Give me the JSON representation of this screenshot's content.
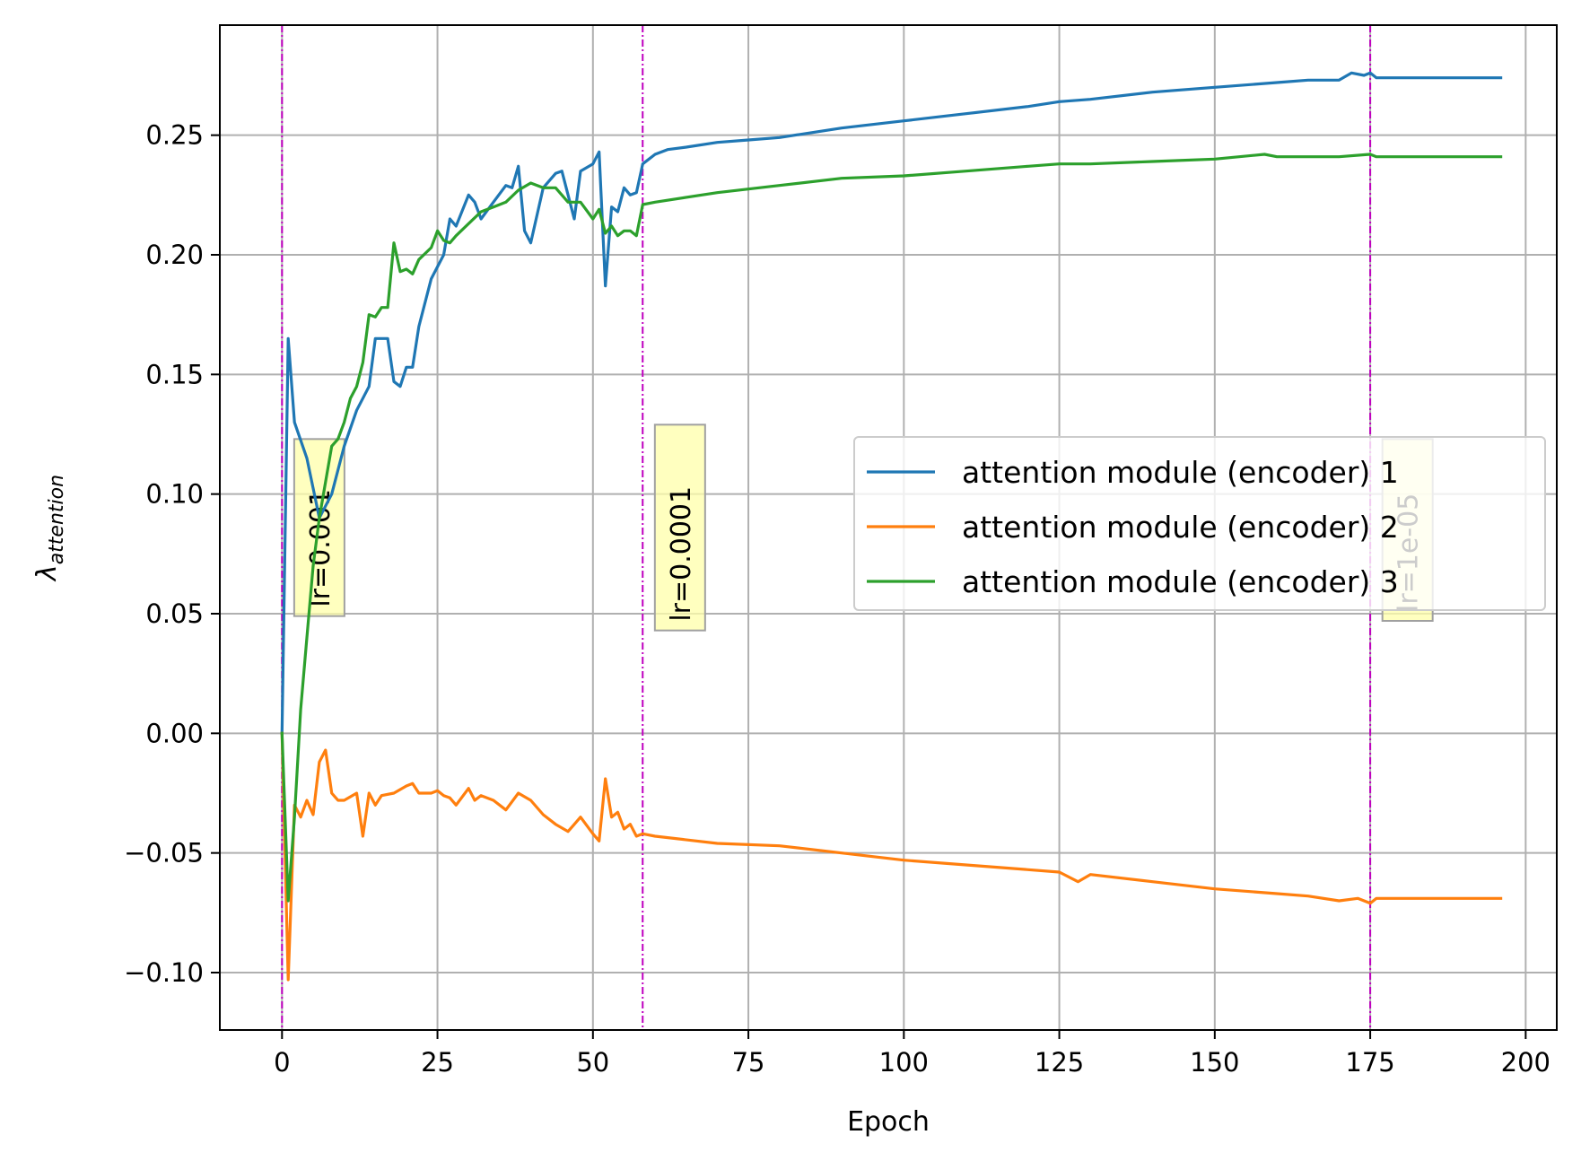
{
  "chart_data": {
    "type": "line",
    "title": "",
    "xlabel": "Epoch",
    "ylabel_main": "λ",
    "ylabel_sub": "attention",
    "xlim": [
      -10,
      205
    ],
    "ylim": [
      -0.124,
      0.296
    ],
    "x_ticks": [
      0,
      25,
      50,
      75,
      100,
      125,
      150,
      175,
      200
    ],
    "x_tick_labels": [
      "0",
      "25",
      "50",
      "75",
      "100",
      "125",
      "150",
      "175",
      "200"
    ],
    "y_ticks": [
      -0.1,
      -0.05,
      0.0,
      0.05,
      0.1,
      0.15,
      0.2,
      0.25
    ],
    "y_tick_labels": [
      "−0.10",
      "−0.05",
      "0.00",
      "0.05",
      "0.10",
      "0.15",
      "0.20",
      "0.25"
    ],
    "grid": true,
    "legend_position": "center-right",
    "series": [
      {
        "name": "attention module (encoder) 1",
        "color": "#1f77b4",
        "x": [
          0,
          1,
          2,
          4,
          6,
          8,
          10,
          12,
          14,
          15,
          17,
          18,
          19,
          20,
          21,
          22,
          24,
          26,
          27,
          28,
          30,
          31,
          32,
          34,
          36,
          37,
          38,
          39,
          40,
          42,
          44,
          45,
          46,
          47,
          48,
          50,
          51,
          52,
          53,
          54,
          55,
          56,
          57,
          58,
          60,
          62,
          65,
          70,
          75,
          80,
          90,
          100,
          110,
          120,
          125,
          130,
          140,
          150,
          160,
          165,
          170,
          172,
          174,
          175,
          176,
          180,
          190,
          196
        ],
        "y": [
          0.0,
          0.165,
          0.13,
          0.115,
          0.09,
          0.1,
          0.12,
          0.135,
          0.145,
          0.165,
          0.165,
          0.147,
          0.145,
          0.153,
          0.153,
          0.17,
          0.19,
          0.2,
          0.215,
          0.212,
          0.225,
          0.222,
          0.215,
          0.222,
          0.229,
          0.228,
          0.237,
          0.21,
          0.205,
          0.228,
          0.234,
          0.235,
          0.225,
          0.215,
          0.235,
          0.238,
          0.243,
          0.187,
          0.22,
          0.218,
          0.228,
          0.225,
          0.226,
          0.238,
          0.242,
          0.244,
          0.245,
          0.247,
          0.248,
          0.249,
          0.253,
          0.256,
          0.259,
          0.262,
          0.264,
          0.265,
          0.268,
          0.27,
          0.272,
          0.273,
          0.273,
          0.276,
          0.275,
          0.276,
          0.274,
          0.274,
          0.274,
          0.274
        ]
      },
      {
        "name": "attention module (encoder) 2",
        "color": "#ff7f0e",
        "x": [
          0,
          1,
          2,
          3,
          4,
          5,
          6,
          7,
          8,
          9,
          10,
          12,
          13,
          14,
          15,
          16,
          18,
          20,
          21,
          22,
          24,
          25,
          26,
          27,
          28,
          30,
          31,
          32,
          34,
          36,
          38,
          40,
          42,
          44,
          46,
          48,
          50,
          51,
          52,
          53,
          54,
          55,
          56,
          57,
          58,
          60,
          70,
          80,
          90,
          100,
          110,
          120,
          125,
          128,
          130,
          140,
          150,
          160,
          165,
          170,
          173,
          175,
          176,
          180,
          190,
          196
        ],
        "y": [
          0.0,
          -0.103,
          -0.03,
          -0.035,
          -0.028,
          -0.034,
          -0.012,
          -0.007,
          -0.025,
          -0.028,
          -0.028,
          -0.025,
          -0.043,
          -0.025,
          -0.03,
          -0.026,
          -0.025,
          -0.022,
          -0.021,
          -0.025,
          -0.025,
          -0.024,
          -0.026,
          -0.027,
          -0.03,
          -0.023,
          -0.028,
          -0.026,
          -0.028,
          -0.032,
          -0.025,
          -0.028,
          -0.034,
          -0.038,
          -0.041,
          -0.035,
          -0.042,
          -0.045,
          -0.019,
          -0.035,
          -0.033,
          -0.04,
          -0.038,
          -0.043,
          -0.042,
          -0.043,
          -0.046,
          -0.047,
          -0.05,
          -0.053,
          -0.055,
          -0.057,
          -0.058,
          -0.062,
          -0.059,
          -0.062,
          -0.065,
          -0.067,
          -0.068,
          -0.07,
          -0.069,
          -0.071,
          -0.069,
          -0.069,
          -0.069,
          -0.069
        ]
      },
      {
        "name": "attention module (encoder) 3",
        "color": "#2ca02c",
        "x": [
          0,
          1,
          2,
          3,
          4,
          5,
          6,
          7,
          8,
          9,
          10,
          11,
          12,
          13,
          14,
          15,
          16,
          17,
          18,
          19,
          20,
          21,
          22,
          24,
          25,
          26,
          27,
          28,
          30,
          32,
          34,
          36,
          38,
          40,
          42,
          44,
          46,
          48,
          50,
          51,
          52,
          53,
          54,
          55,
          56,
          57,
          58,
          60,
          70,
          80,
          90,
          100,
          110,
          120,
          125,
          130,
          140,
          150,
          158,
          160,
          170,
          175,
          176,
          180,
          190,
          196
        ],
        "y": [
          0.0,
          -0.07,
          -0.035,
          0.01,
          0.04,
          0.07,
          0.09,
          0.105,
          0.12,
          0.123,
          0.13,
          0.14,
          0.145,
          0.155,
          0.175,
          0.174,
          0.178,
          0.178,
          0.205,
          0.193,
          0.194,
          0.192,
          0.198,
          0.203,
          0.21,
          0.206,
          0.205,
          0.208,
          0.213,
          0.218,
          0.22,
          0.222,
          0.227,
          0.23,
          0.228,
          0.228,
          0.222,
          0.222,
          0.215,
          0.219,
          0.209,
          0.212,
          0.208,
          0.21,
          0.21,
          0.208,
          0.221,
          0.222,
          0.226,
          0.229,
          0.232,
          0.233,
          0.235,
          0.237,
          0.238,
          0.238,
          0.239,
          0.24,
          0.242,
          0.241,
          0.241,
          0.242,
          0.241,
          0.241,
          0.241,
          0.241
        ]
      }
    ],
    "vlines": [
      {
        "x": 0,
        "color": "#bf00bf"
      },
      {
        "x": 58,
        "color": "#bf00bf"
      },
      {
        "x": 175,
        "color": "#bf00bf"
      }
    ],
    "annotations": [
      {
        "text": "lr=0.001",
        "x": 6,
        "y_top": 0.123,
        "y_bottom": 0.049
      },
      {
        "text": "lr=0.0001",
        "x": 64,
        "y_top": 0.129,
        "y_bottom": 0.043
      },
      {
        "text": "lr=1e-05",
        "x": 181,
        "y_top": 0.123,
        "y_bottom": 0.047
      }
    ]
  }
}
